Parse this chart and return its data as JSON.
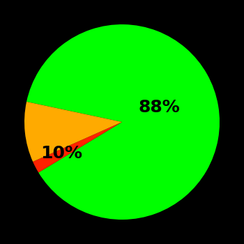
{
  "slices": [
    88,
    2,
    10
  ],
  "colors": [
    "#00ff00",
    "#ff2200",
    "#ffaa00"
  ],
  "labels": [
    "88%",
    "",
    "10%"
  ],
  "background_color": "#000000",
  "label_fontsize": 18,
  "label_color": "#000000",
  "startangle": 168,
  "figsize": [
    3.5,
    3.5
  ],
  "dpi": 100
}
